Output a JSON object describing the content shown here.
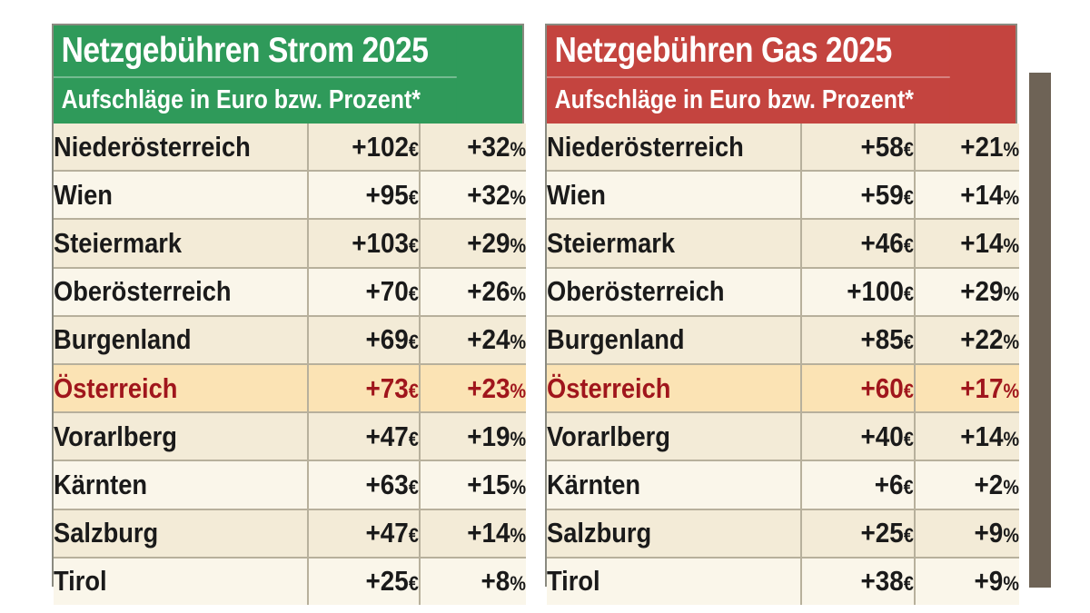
{
  "chart_data": [
    {
      "type": "table",
      "title": "Netzgebühren Strom 2025",
      "subtitle": "Aufschläge in Euro bzw. Prozent*",
      "header_color": "#2f9a5a",
      "highlight_color": "#a0161c",
      "rows": [
        {
          "region": "Niederösterreich",
          "euro": "+102",
          "euro_unit": "€",
          "percent": "+32",
          "percent_unit": "%",
          "highlight": false
        },
        {
          "region": "Wien",
          "euro": "+95",
          "euro_unit": "€",
          "percent": "+32",
          "percent_unit": "%",
          "highlight": false
        },
        {
          "region": "Steiermark",
          "euro": "+103",
          "euro_unit": "€",
          "percent": "+29",
          "percent_unit": "%",
          "highlight": false
        },
        {
          "region": "Oberösterreich",
          "euro": "+70",
          "euro_unit": "€",
          "percent": "+26",
          "percent_unit": "%",
          "highlight": false
        },
        {
          "region": "Burgenland",
          "euro": "+69",
          "euro_unit": "€",
          "percent": "+24",
          "percent_unit": "%",
          "highlight": false
        },
        {
          "region": "Österreich",
          "euro": "+73",
          "euro_unit": "€",
          "percent": "+23",
          "percent_unit": "%",
          "highlight": true
        },
        {
          "region": "Vorarlberg",
          "euro": "+47",
          "euro_unit": "€",
          "percent": "+19",
          "percent_unit": "%",
          "highlight": false
        },
        {
          "region": "Kärnten",
          "euro": "+63",
          "euro_unit": "€",
          "percent": "+15",
          "percent_unit": "%",
          "highlight": false
        },
        {
          "region": "Salzburg",
          "euro": "+47",
          "euro_unit": "€",
          "percent": "+14",
          "percent_unit": "%",
          "highlight": false
        },
        {
          "region": "Tirol",
          "euro": "+25",
          "euro_unit": "€",
          "percent": "+8",
          "percent_unit": "%",
          "highlight": false
        }
      ]
    },
    {
      "type": "table",
      "title": "Netzgebühren Gas 2025",
      "subtitle": "Aufschläge in Euro bzw. Prozent*",
      "header_color": "#c4443f",
      "highlight_color": "#a0161c",
      "rows": [
        {
          "region": "Niederösterreich",
          "euro": "+58",
          "euro_unit": "€",
          "percent": "+21",
          "percent_unit": "%",
          "highlight": false
        },
        {
          "region": "Wien",
          "euro": "+59",
          "euro_unit": "€",
          "percent": "+14",
          "percent_unit": "%",
          "highlight": false
        },
        {
          "region": "Steiermark",
          "euro": "+46",
          "euro_unit": "€",
          "percent": "+14",
          "percent_unit": "%",
          "highlight": false
        },
        {
          "region": "Oberösterreich",
          "euro": "+100",
          "euro_unit": "€",
          "percent": "+29",
          "percent_unit": "%",
          "highlight": false
        },
        {
          "region": "Burgenland",
          "euro": "+85",
          "euro_unit": "€",
          "percent": "+22",
          "percent_unit": "%",
          "highlight": false
        },
        {
          "region": "Österreich",
          "euro": "+60",
          "euro_unit": "€",
          "percent": "+17",
          "percent_unit": "%",
          "highlight": true
        },
        {
          "region": "Vorarlberg",
          "euro": "+40",
          "euro_unit": "€",
          "percent": "+14",
          "percent_unit": "%",
          "highlight": false
        },
        {
          "region": "Kärnten",
          "euro": "+6",
          "euro_unit": "€",
          "percent": "+2",
          "percent_unit": "%",
          "highlight": false
        },
        {
          "region": "Salzburg",
          "euro": "+25",
          "euro_unit": "€",
          "percent": "+9",
          "percent_unit": "%",
          "highlight": false
        },
        {
          "region": "Tirol",
          "euro": "+38",
          "euro_unit": "€",
          "percent": "+9",
          "percent_unit": "%",
          "highlight": false
        }
      ]
    }
  ]
}
